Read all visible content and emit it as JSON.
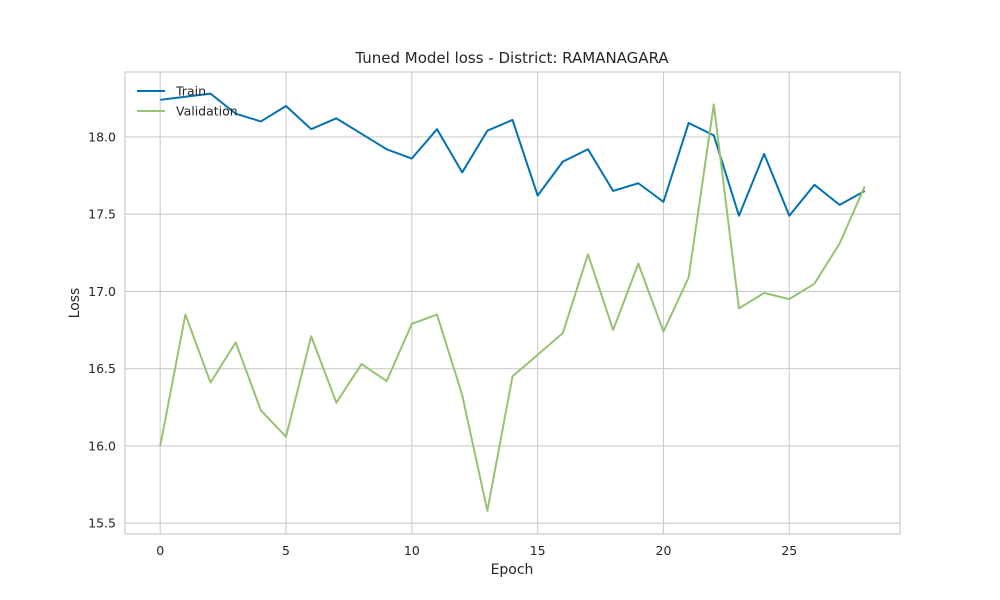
{
  "chart_data": {
    "type": "line",
    "title": "Tuned Model loss - District: RAMANAGARA",
    "xlabel": "Epoch",
    "ylabel": "Loss",
    "xlim": [
      -1.4,
      29.4
    ],
    "ylim": [
      15.43,
      18.42
    ],
    "xticks": [
      0,
      5,
      10,
      15,
      20,
      25
    ],
    "yticks": [
      15.5,
      16.0,
      16.5,
      17.0,
      17.5,
      18.0
    ],
    "grid": true,
    "legend_position": "top-left",
    "x": [
      0,
      1,
      2,
      3,
      4,
      5,
      6,
      7,
      8,
      9,
      10,
      11,
      12,
      13,
      14,
      15,
      16,
      17,
      18,
      19,
      20,
      21,
      22,
      23,
      24,
      25,
      26,
      27,
      28
    ],
    "series": [
      {
        "name": "Train",
        "color": "#0072b2",
        "values": [
          18.24,
          18.26,
          18.28,
          18.15,
          18.1,
          18.2,
          18.05,
          18.12,
          18.02,
          17.92,
          17.86,
          18.05,
          17.77,
          18.04,
          18.11,
          17.62,
          17.84,
          17.92,
          17.65,
          17.7,
          17.58,
          18.09,
          18.01,
          17.49,
          17.89,
          17.49,
          17.69,
          17.56,
          17.65
        ]
      },
      {
        "name": "Validation",
        "color": "#96c271",
        "values": [
          16.0,
          16.85,
          16.41,
          16.67,
          16.23,
          16.06,
          16.71,
          16.28,
          16.53,
          16.42,
          16.79,
          16.85,
          16.33,
          15.58,
          16.45,
          16.59,
          16.73,
          17.24,
          16.75,
          17.18,
          16.74,
          17.09,
          18.21,
          16.89,
          16.99,
          16.95,
          17.05,
          17.31,
          17.68
        ]
      }
    ]
  }
}
